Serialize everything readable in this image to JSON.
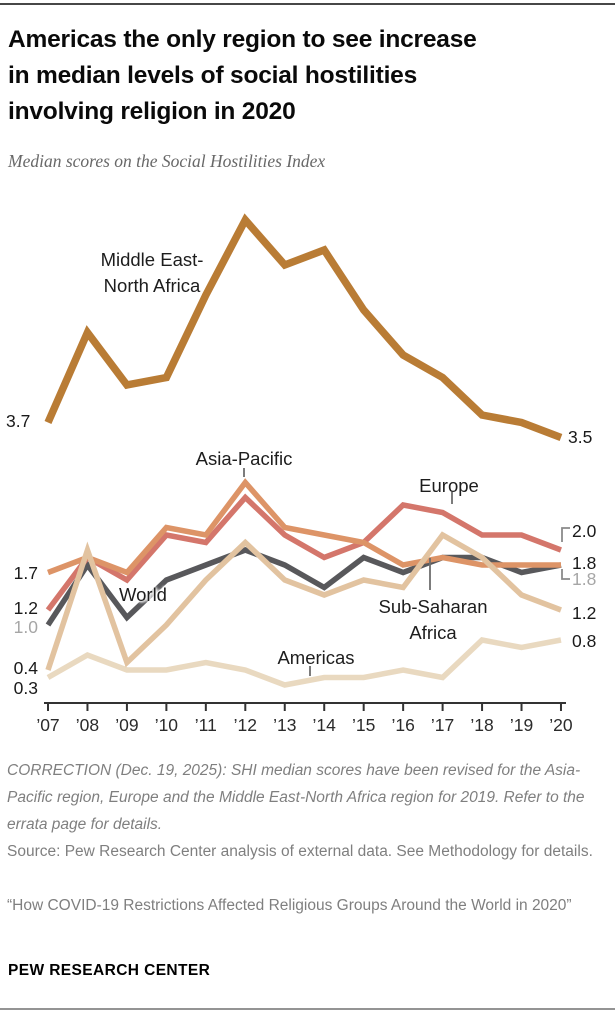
{
  "header": {
    "title_lines": [
      "Americas the only region to see increase",
      "in median levels of social hostilities",
      "involving religion in 2020"
    ],
    "subtitle": "Median scores on the Social Hostilities Index"
  },
  "chart_data": {
    "type": "line",
    "title": "Median scores on the Social Hostilities Index",
    "x": [
      "’07",
      "’08",
      "’09",
      "’10",
      "’11",
      "’12",
      "’13",
      "’14",
      "’15",
      "’16",
      "’17",
      "’18",
      "’19",
      "’20"
    ],
    "ylim": [
      0,
      6.9
    ],
    "grid": false,
    "legend_position": "inline-labels",
    "series": [
      {
        "name": "Middle East-North Africa",
        "color": "#b97c35",
        "values": [
          3.7,
          4.9,
          4.2,
          4.3,
          5.4,
          6.4,
          5.8,
          6.0,
          5.2,
          4.6,
          4.3,
          3.8,
          3.7,
          3.5
        ],
        "start_label": "3.7",
        "end_label": "3.5"
      },
      {
        "name": "Asia-Pacific",
        "color": "#dd9467",
        "values": [
          1.7,
          1.9,
          1.7,
          2.3,
          2.2,
          2.9,
          2.3,
          2.2,
          2.1,
          1.8,
          1.9,
          1.8,
          1.8,
          1.8
        ],
        "start_label": "1.7",
        "end_label": "1.8"
      },
      {
        "name": "Europe",
        "color": "#d4766b",
        "values": [
          1.2,
          1.9,
          1.6,
          2.2,
          2.1,
          2.7,
          2.2,
          1.9,
          2.1,
          2.6,
          2.5,
          2.2,
          2.2,
          2.0
        ],
        "start_label": "1.2",
        "end_label": "2.0"
      },
      {
        "name": "World",
        "color": "#58585b",
        "values": [
          1.0,
          1.8,
          1.1,
          1.6,
          1.8,
          2.0,
          1.8,
          1.5,
          1.9,
          1.7,
          1.9,
          1.9,
          1.7,
          1.8
        ],
        "start_label": "1.0",
        "end_label": "1.8"
      },
      {
        "name": "Sub-Saharan Africa",
        "color": "#e2c3a0",
        "values": [
          0.4,
          2.0,
          0.5,
          1.0,
          1.6,
          2.1,
          1.6,
          1.4,
          1.6,
          1.5,
          2.2,
          1.9,
          1.4,
          1.2
        ],
        "start_label": "0.4",
        "end_label": "1.2"
      },
      {
        "name": "Americas",
        "color": "#e9d9c0",
        "values": [
          0.3,
          0.6,
          0.4,
          0.4,
          0.5,
          0.4,
          0.2,
          0.3,
          0.3,
          0.4,
          0.3,
          0.8,
          0.7,
          0.8
        ],
        "start_label": "0.3",
        "end_label": "0.8"
      }
    ]
  },
  "annotations": {
    "mena": [
      "Middle East-",
      "North Africa"
    ],
    "asia_pacific": "Asia-Pacific",
    "europe": "Europe",
    "world": "World",
    "ssa": [
      "Sub-Saharan",
      "Africa"
    ],
    "americas": "Americas"
  },
  "footer": {
    "correction": "CORRECTION (Dec. 19, 2025): SHI median scores have been revised for the Asia-Pacific region, Europe and the Middle East-North Africa region for 2019. Refer to the errata page for details.",
    "source": "Source: Pew Research Center analysis of external data. See Methodology for details.",
    "report": "“How COVID-19 Restrictions Affected Religious Groups Around the World in 2020”",
    "brand": "PEW RESEARCH CENTER"
  }
}
